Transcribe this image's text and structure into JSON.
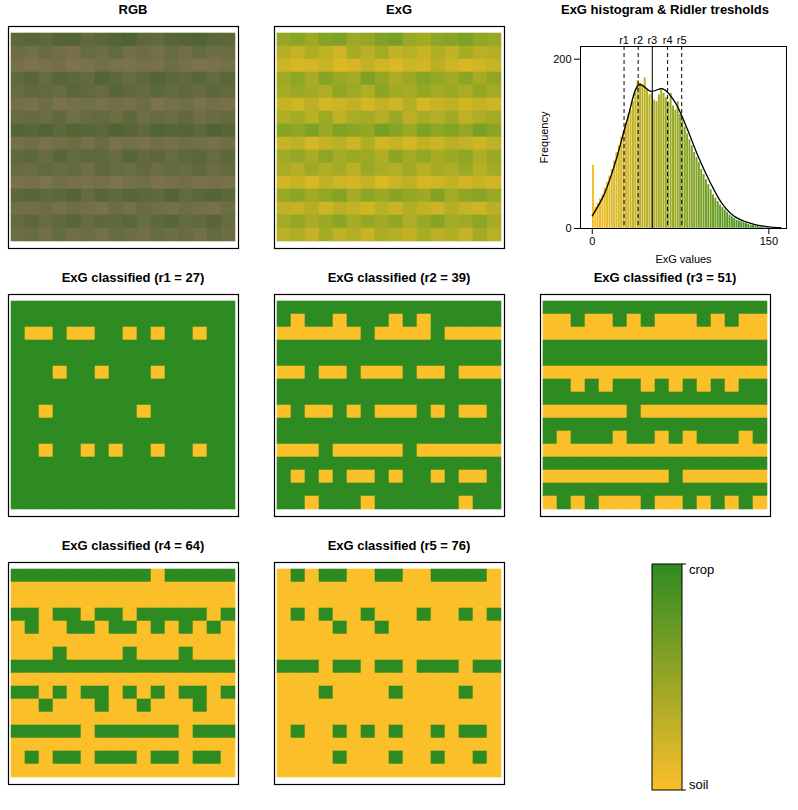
{
  "chart_data": [
    {
      "type": "image",
      "title": "RGB",
      "tick_labels": false,
      "colors": [
        "#8a7656",
        "#2c5a1c"
      ]
    },
    {
      "type": "heatmap",
      "title": "ExG",
      "tick_labels": false,
      "color_range": [
        0,
        150
      ],
      "colors": [
        "#F5BE25",
        "#2f8f25"
      ],
      "cells": [
        [
          72,
          80,
          68,
          85,
          90,
          66,
          74,
          88,
          95,
          70,
          62,
          78,
          84,
          92,
          76,
          70
        ],
        [
          48,
          36,
          55,
          42,
          30,
          58,
          44,
          62,
          38,
          46,
          34,
          52,
          40,
          60,
          45,
          50
        ],
        [
          30,
          22,
          26,
          35,
          18,
          24,
          40,
          28,
          20,
          32,
          25,
          45,
          30,
          22,
          28,
          34
        ],
        [
          66,
          78,
          58,
          82,
          70,
          62,
          90,
          74,
          56,
          68,
          84,
          72,
          64,
          80,
          60,
          76
        ],
        [
          58,
          70,
          62,
          54,
          76,
          66,
          52,
          80,
          64,
          58,
          72,
          60,
          68,
          56,
          74,
          62
        ],
        [
          36,
          28,
          44,
          24,
          32,
          40,
          26,
          38,
          30,
          48,
          22,
          34,
          42,
          28,
          36,
          30
        ],
        [
          52,
          60,
          46,
          66,
          40,
          56,
          62,
          48,
          70,
          44,
          58,
          50,
          64,
          42,
          54,
          60
        ],
        [
          84,
          76,
          92,
          70,
          88,
          80,
          74,
          96,
          82,
          68,
          90,
          78,
          86,
          72,
          94,
          80
        ],
        [
          34,
          42,
          26,
          38,
          46,
          30,
          52,
          28,
          36,
          24,
          40,
          32,
          44,
          38,
          30,
          42
        ],
        [
          64,
          72,
          56,
          78,
          60,
          70,
          66,
          54,
          80,
          62,
          74,
          58,
          68,
          76,
          52,
          70
        ],
        [
          58,
          48,
          66,
          52,
          62,
          44,
          70,
          56,
          50,
          64,
          46,
          60,
          54,
          68,
          48,
          62
        ],
        [
          28,
          34,
          22,
          40,
          30,
          26,
          36,
          20,
          32,
          42,
          24,
          30,
          38,
          26,
          34,
          28
        ],
        [
          70,
          80,
          64,
          74,
          86,
          60,
          78,
          68,
          82,
          72,
          66,
          88,
          62,
          76,
          84,
          70
        ],
        [
          42,
          36,
          50,
          30,
          44,
          38,
          28,
          46,
          34,
          52,
          40,
          32,
          48,
          36,
          30,
          44
        ],
        [
          62,
          74,
          56,
          68,
          80,
          58,
          72,
          64,
          76,
          54,
          70,
          82,
          60,
          66,
          78,
          58
        ],
        [
          46,
          54,
          38,
          60,
          42,
          50,
          34,
          56,
          48,
          40,
          58,
          44,
          52,
          36,
          62,
          46
        ]
      ]
    },
    {
      "type": "histogram",
      "title": "ExG histogram & Ridler tresholds",
      "x_label": "ExG values",
      "y_label": "Frequency",
      "xlim": [
        -10,
        165
      ],
      "ylim": [
        0,
        215
      ],
      "xticks": [
        0,
        150
      ],
      "yticks": [
        0,
        200
      ],
      "bins": [
        0,
        2,
        4,
        6,
        8,
        10,
        12,
        14,
        16,
        18,
        20,
        22,
        24,
        26,
        28,
        30,
        32,
        34,
        36,
        38,
        40,
        42,
        44,
        46,
        48,
        50,
        52,
        54,
        56,
        58,
        60,
        62,
        64,
        66,
        68,
        70,
        72,
        74,
        76,
        78,
        80,
        82,
        84,
        86,
        88,
        90,
        92,
        94,
        96,
        98,
        100,
        102,
        104,
        106,
        108,
        110,
        112,
        114,
        116,
        118,
        120,
        122,
        124,
        126,
        128,
        130,
        132,
        134,
        136,
        138,
        140,
        142,
        144,
        146,
        148,
        150
      ],
      "counts": [
        75,
        25,
        30,
        35,
        40,
        48,
        55,
        62,
        70,
        80,
        90,
        98,
        108,
        115,
        125,
        135,
        140,
        150,
        160,
        175,
        172,
        168,
        178,
        165,
        158,
        160,
        152,
        150,
        158,
        165,
        160,
        155,
        150,
        160,
        145,
        140,
        150,
        135,
        128,
        120,
        112,
        105,
        98,
        90,
        84,
        78,
        70,
        64,
        58,
        52,
        46,
        40,
        36,
        32,
        28,
        25,
        22,
        19,
        16,
        14,
        12,
        10,
        9,
        8,
        7,
        6,
        5,
        4,
        4,
        3,
        3,
        2,
        2,
        1,
        1
      ],
      "density": {
        "x": [
          0,
          10,
          20,
          30,
          40,
          50,
          60,
          70,
          80,
          90,
          100,
          110,
          120,
          130,
          140,
          150,
          160
        ],
        "values": [
          15,
          40,
          80,
          130,
          170,
          162,
          165,
          150,
          120,
          85,
          55,
          30,
          15,
          8,
          4,
          2,
          1
        ]
      },
      "thresholds": [
        {
          "name": "r1",
          "value": 27,
          "line_style": "dashed"
        },
        {
          "name": "r2",
          "value": 39,
          "line_style": "dashed"
        },
        {
          "name": "r3",
          "value": 51,
          "line_style": "solid"
        },
        {
          "name": "r4",
          "value": 64,
          "line_style": "dashed"
        },
        {
          "name": "r5",
          "value": 76,
          "line_style": "dashed"
        }
      ]
    },
    {
      "type": "classified",
      "title": "ExG classified (r1 = 27)",
      "threshold": 27,
      "tick_labels": false
    },
    {
      "type": "classified",
      "title": "ExG classified (r2 = 39)",
      "threshold": 39,
      "tick_labels": false
    },
    {
      "type": "classified",
      "title": "ExG classified (r3 = 51)",
      "threshold": 51,
      "tick_labels": false
    },
    {
      "type": "classified",
      "title": "ExG classified (r4 = 64)",
      "threshold": 64,
      "tick_labels": false
    },
    {
      "type": "classified",
      "title": "ExG classified (r5 = 76)",
      "threshold": 76,
      "tick_labels": false
    },
    {
      "type": "legend",
      "labels": [
        "crop",
        "soil"
      ],
      "colors": [
        "#2E8B22",
        "#FBBF2A"
      ]
    }
  ]
}
